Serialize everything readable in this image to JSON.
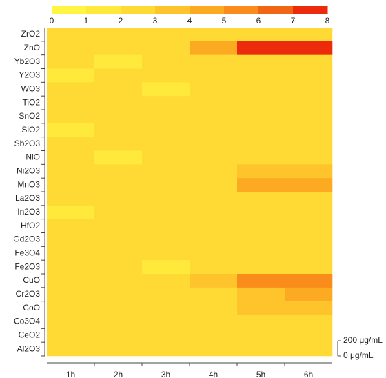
{
  "chart_data": {
    "type": "heatmap",
    "rows": [
      "ZrO2",
      "ZnO",
      "Yb2O3",
      "Y2O3",
      "WO3",
      "TiO2",
      "SnO2",
      "SiO2",
      "Sb2O3",
      "NiO",
      "Ni2O3",
      "MnO3",
      "La2O3",
      "In2O3",
      "HfO2",
      "Gd2O3",
      "Fe3O4",
      "Fe2O3",
      "CuO",
      "Cr2O3",
      "CoO",
      "Co3O4",
      "CeO2",
      "Al2O3"
    ],
    "columns": [
      "1h",
      "2h",
      "3h",
      "4h",
      "5h",
      "6h"
    ],
    "values": [
      [
        2.1,
        2.0,
        2.1,
        2.2,
        2.3,
        2.3
      ],
      [
        2.2,
        2.1,
        2.0,
        4.5,
        7.0,
        7.2
      ],
      [
        2.0,
        1.9,
        2.0,
        2.0,
        2.1,
        2.2
      ],
      [
        1.9,
        2.0,
        2.1,
        2.0,
        2.1,
        2.0
      ],
      [
        2.0,
        2.1,
        1.9,
        2.0,
        2.0,
        2.1
      ],
      [
        2.1,
        2.0,
        2.0,
        2.1,
        2.0,
        2.0
      ],
      [
        2.0,
        2.2,
        2.0,
        2.0,
        2.1,
        2.1
      ],
      [
        1.9,
        2.0,
        2.1,
        2.0,
        2.0,
        2.0
      ],
      [
        2.0,
        2.0,
        2.0,
        2.1,
        2.0,
        2.1
      ],
      [
        2.1,
        1.9,
        2.0,
        2.2,
        2.1,
        2.2
      ],
      [
        2.0,
        2.1,
        2.0,
        2.3,
        3.0,
        3.5
      ],
      [
        2.1,
        2.0,
        2.1,
        2.5,
        4.5,
        4.5
      ],
      [
        2.0,
        2.1,
        2.0,
        2.1,
        2.1,
        2.2
      ],
      [
        1.9,
        2.0,
        2.0,
        2.0,
        2.1,
        2.0
      ],
      [
        2.0,
        2.0,
        2.1,
        2.0,
        2.0,
        2.1
      ],
      [
        2.1,
        2.0,
        2.0,
        2.1,
        2.0,
        2.0
      ],
      [
        2.0,
        2.1,
        2.0,
        2.0,
        2.1,
        2.1
      ],
      [
        2.0,
        2.0,
        1.9,
        2.1,
        2.0,
        2.1
      ],
      [
        2.0,
        2.0,
        2.0,
        3.0,
        5.0,
        5.5
      ],
      [
        2.1,
        2.0,
        2.0,
        2.5,
        3.5,
        4.0
      ],
      [
        2.0,
        2.1,
        2.0,
        2.3,
        3.0,
        3.5
      ],
      [
        2.0,
        2.0,
        2.1,
        2.1,
        2.2,
        2.3
      ],
      [
        2.1,
        2.0,
        2.0,
        2.0,
        2.1,
        2.1
      ],
      [
        2.0,
        2.1,
        2.0,
        2.0,
        2.0,
        2.1
      ]
    ],
    "clim": [
      0,
      8
    ],
    "colorbar_ticks": [
      0,
      1,
      2,
      3,
      4,
      5,
      6,
      7,
      8
    ],
    "colors": [
      "#fff542",
      "#ffe93b",
      "#ffd934",
      "#ffc42c",
      "#fcaa22",
      "#f98c1a",
      "#f26512",
      "#ec2a0c"
    ],
    "concentration_labels": [
      "200 μg/mL",
      "0 μg/mL"
    ]
  }
}
